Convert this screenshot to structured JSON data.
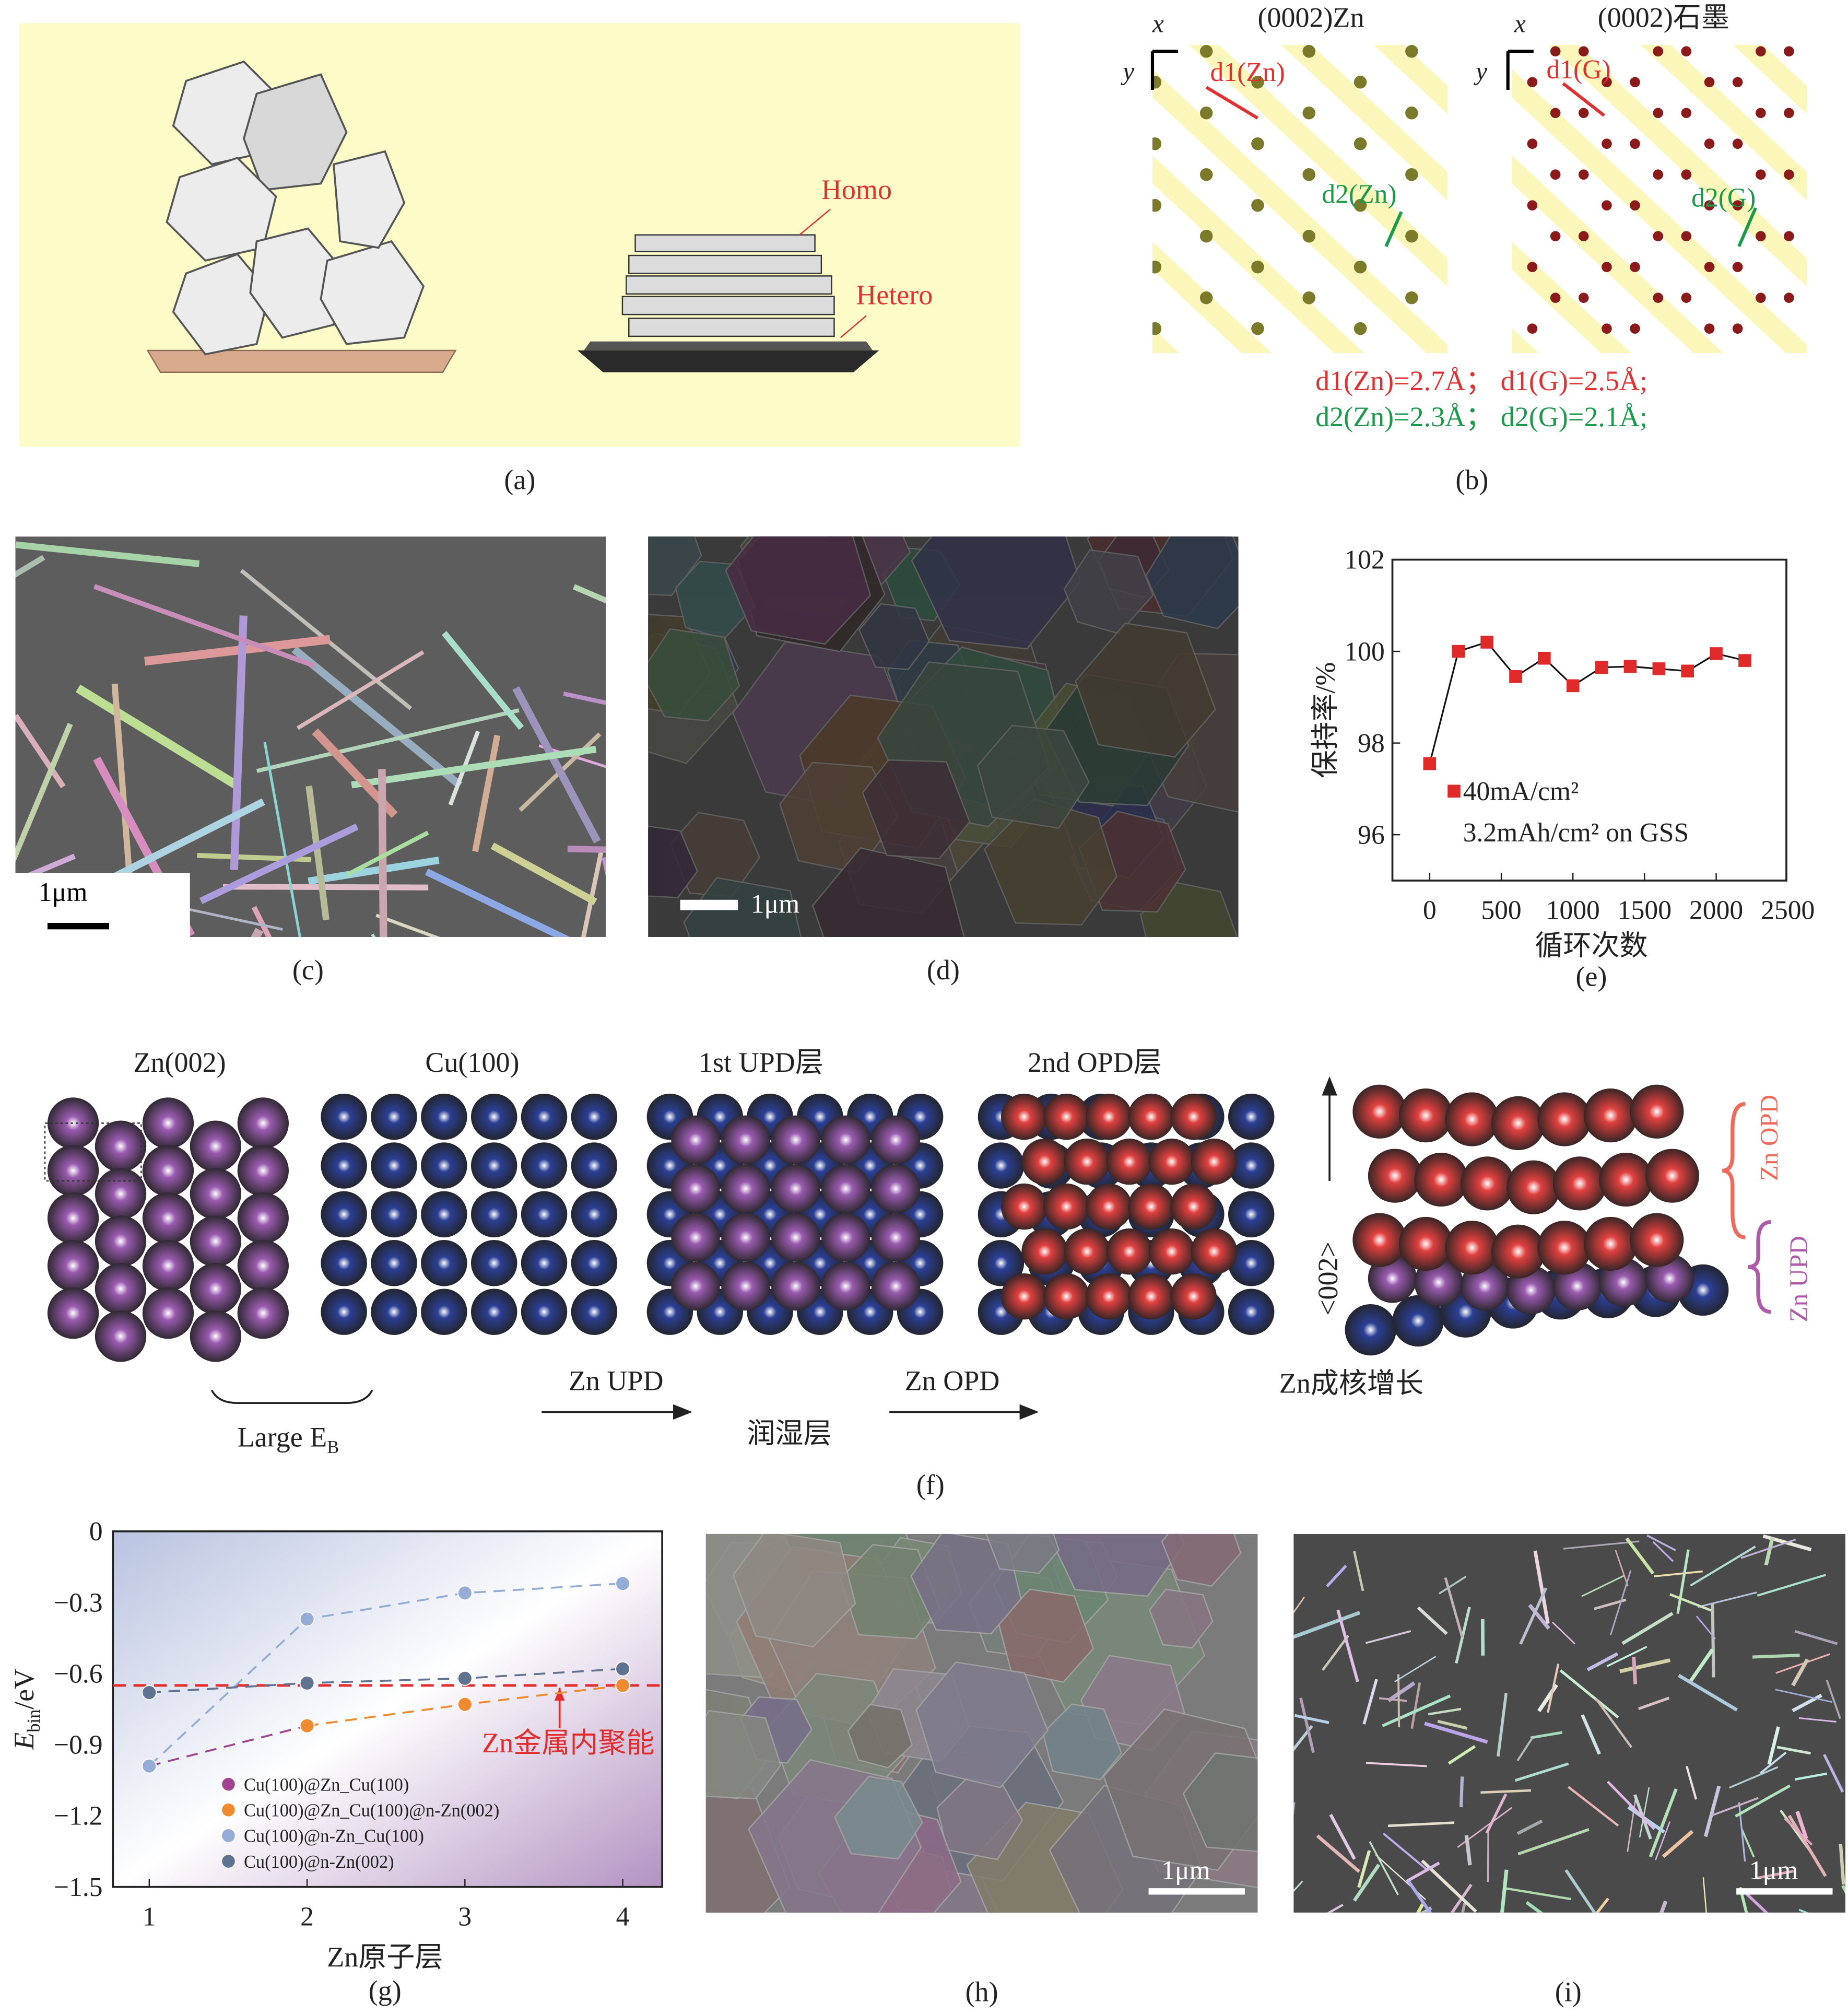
{
  "panels": {
    "a": {
      "label": "(a)",
      "homo": "Homo",
      "hetero": "Hetero",
      "bg_color": "#fdfbc8"
    },
    "b": {
      "label": "(b)",
      "title_zn": "(0002)Zn",
      "title_g": "(0002)石墨",
      "axis_x": "x",
      "axis_y": "y",
      "d1_zn": "d1(Zn)",
      "d2_zn": "d2(Zn)",
      "d1_g": "d1(G)",
      "d2_g": "d2(G)",
      "eq1": "d1(Zn)=2.7Å；  d1(G)=2.5Å;",
      "eq2": "d2(Zn)=2.3Å；  d2(G)=2.1Å;",
      "red": "#e03030",
      "green": "#1a9a4a",
      "zn_atom_color": "#7a7a2a",
      "g_atom_color": "#8b1a1a"
    },
    "c": {
      "label": "(c)",
      "scale_bar": "1μm"
    },
    "d": {
      "label": "(d)",
      "scale_bar": "1μm"
    },
    "f": {
      "label": "(f)",
      "titles": [
        "Zn(002)",
        "Cu(100)",
        "1st UPD层",
        "2nd OPD层"
      ],
      "large_eb": "Large E",
      "large_eb_sub": "B",
      "zn_upd": "Zn UPD",
      "wetting": "润湿层",
      "zn_opd": "Zn OPD",
      "nucleation": "Zn成核增长",
      "direction": "<002>",
      "opd_tag": "Zn OPD",
      "upd_tag": "Zn UPD",
      "colors": {
        "zn": "#9a5bb0",
        "cu": "#2b3f95",
        "opd": "#e0403f"
      }
    },
    "h": {
      "label": "(h)",
      "scale_bar": "1μm"
    },
    "i": {
      "label": "(i)",
      "scale_bar": "1μm"
    }
  },
  "chart_data": [
    {
      "id": "e",
      "label": "(e)",
      "type": "line",
      "xlabel": "循环次数",
      "ylabel": "保持率/%",
      "xlim": [
        -260,
        2490
      ],
      "ylim": [
        95,
        102
      ],
      "xticks": [
        0,
        500,
        1000,
        1500,
        2000,
        2500
      ],
      "yticks": [
        96,
        98,
        100,
        102
      ],
      "legend": {
        "placement": "bottom-left",
        "line1": "40mA/cm²",
        "line2": "3.2mAh/cm² on GSS"
      },
      "series": [
        {
          "marker": "square",
          "color": "#e02a2a",
          "x": [
            0,
            200,
            400,
            600,
            800,
            1000,
            1200,
            1400,
            1600,
            1800,
            2000,
            2200
          ],
          "y": [
            97.55,
            100.0,
            100.2,
            99.45,
            99.85,
            99.25,
            99.65,
            99.67,
            99.62,
            99.57,
            99.95,
            99.8
          ]
        }
      ],
      "grid": false
    },
    {
      "id": "g",
      "label": "(g)",
      "type": "line",
      "xlabel": "Zn原子层",
      "ylabel": "E",
      "ylabel_sub": "bin",
      "ylabel_unit": "/eV",
      "xlim": [
        0.77,
        4.25
      ],
      "ylim": [
        -1.5,
        0
      ],
      "xticks": [
        1,
        2,
        3,
        4
      ],
      "yticks": [
        0,
        -0.3,
        -0.6,
        -0.9,
        -1.2,
        -1.5
      ],
      "ytick_labels": [
        "0",
        "−0.3",
        "−0.6",
        "−0.9",
        "−1.2",
        "−1.5"
      ],
      "reference_line": {
        "y": -0.65,
        "label": "Zn金属内聚能",
        "color": "#e52b2b"
      },
      "legend": {
        "placement": "bottom-center"
      },
      "series": [
        {
          "name": "Cu(100)@Zn_Cu(100)",
          "color": "#a0448f",
          "x": [
            1,
            2
          ],
          "y": [
            -0.99,
            -0.82
          ]
        },
        {
          "name": "Cu(100)@Zn_Cu(100)@n-Zn(002)",
          "color": "#f08a30",
          "x": [
            2,
            3,
            4
          ],
          "y": [
            -0.82,
            -0.73,
            -0.65
          ]
        },
        {
          "name": "Cu(100)@n-Zn_Cu(100)",
          "color": "#94acd6",
          "x": [
            1,
            2,
            3,
            4
          ],
          "y": [
            -0.99,
            -0.37,
            -0.26,
            -0.22
          ]
        },
        {
          "name": "Cu(100)@n-Zn(002)",
          "color": "#5f7391",
          "x": [
            1,
            2,
            3,
            4
          ],
          "y": [
            -0.68,
            -0.64,
            -0.62,
            -0.58
          ]
        }
      ],
      "grid": false
    }
  ]
}
